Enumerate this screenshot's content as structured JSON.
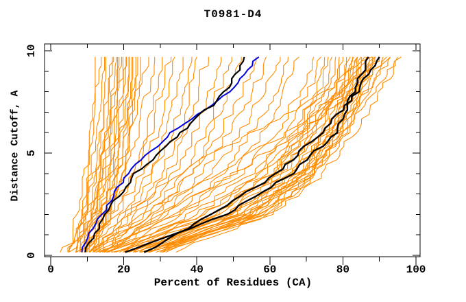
{
  "title": "T0981-D4",
  "axes": {
    "x": {
      "label": "Percent of Residues (CA)",
      "min": 0,
      "max": 100,
      "major_ticks": [
        0,
        20,
        40,
        60,
        80,
        100
      ],
      "minor_step": 10
    },
    "y": {
      "label": "Distance Cutoff, A",
      "min": 0,
      "max": 10,
      "major_ticks": [
        0,
        5,
        10
      ],
      "minor_step": 1
    }
  },
  "colors": {
    "orange": "#ff8c00",
    "blue": "#0000dd",
    "black": "#000000",
    "axis": "#000000",
    "background": "#ffffff"
  },
  "chart_data": {
    "type": "line",
    "title": "T0981-D4",
    "xlabel": "Percent of Residues (CA)",
    "ylabel": "Distance Cutoff, A",
    "xlim": [
      0,
      100
    ],
    "ylim": [
      0,
      10
    ],
    "grid": false,
    "legend": "none",
    "cutoffs": [
      0.15,
      2,
      4,
      6,
      8,
      9.7
    ],
    "orange_models": {
      "color_key": "orange",
      "stroke_width": 1.1,
      "x_at_cutoffs": [
        [
          4,
          7,
          9,
          10,
          11,
          12
        ],
        [
          6,
          8,
          10,
          11,
          12,
          13
        ],
        [
          5,
          8,
          10,
          12,
          13,
          14
        ],
        [
          7,
          9,
          11,
          13,
          14,
          15
        ],
        [
          6,
          9,
          12,
          13,
          15,
          16
        ],
        [
          8,
          10,
          12,
          14,
          15,
          16
        ],
        [
          7,
          10,
          13,
          15,
          16,
          17
        ],
        [
          6,
          10,
          13,
          15,
          17,
          18
        ],
        [
          8,
          11,
          14,
          16,
          17,
          18
        ],
        [
          7,
          11,
          14,
          16,
          18,
          19
        ],
        [
          9,
          12,
          15,
          17,
          18,
          19
        ],
        [
          8,
          12,
          15,
          17,
          19,
          20
        ],
        [
          6,
          11,
          15,
          18,
          19,
          20
        ],
        [
          9,
          13,
          16,
          18,
          20,
          21
        ],
        [
          8,
          13,
          17,
          19,
          20,
          21
        ],
        [
          10,
          14,
          17,
          19,
          21,
          22
        ],
        [
          9,
          14,
          18,
          20,
          21,
          22
        ],
        [
          10,
          15,
          18,
          20,
          22,
          23
        ],
        [
          11,
          15,
          19,
          21,
          22,
          23
        ],
        [
          10,
          16,
          19,
          21,
          23,
          24
        ],
        [
          8,
          13,
          18,
          22,
          24,
          26
        ],
        [
          10,
          15,
          20,
          24,
          26,
          28
        ],
        [
          9,
          16,
          22,
          26,
          28,
          30
        ],
        [
          11,
          17,
          23,
          27,
          30,
          32
        ],
        [
          10,
          18,
          25,
          29,
          32,
          34
        ],
        [
          12,
          20,
          27,
          31,
          34,
          36
        ],
        [
          11,
          21,
          28,
          33,
          36,
          38
        ],
        [
          13,
          22,
          30,
          35,
          38,
          40
        ],
        [
          12,
          24,
          32,
          37,
          40,
          43
        ],
        [
          14,
          26,
          34,
          39,
          43,
          46
        ],
        [
          13,
          27,
          36,
          42,
          46,
          49
        ],
        [
          15,
          29,
          38,
          44,
          48,
          52
        ],
        [
          12,
          28,
          38,
          46,
          52,
          56
        ],
        [
          14,
          30,
          41,
          49,
          55,
          59
        ],
        [
          13,
          32,
          44,
          52,
          58,
          62
        ],
        [
          15,
          34,
          47,
          55,
          61,
          65
        ],
        [
          16,
          36,
          50,
          58,
          64,
          68
        ],
        [
          14,
          35,
          52,
          62,
          68,
          72
        ],
        [
          16,
          38,
          55,
          64,
          70,
          74
        ],
        [
          18,
          40,
          57,
          66,
          72,
          75
        ],
        [
          15,
          42,
          58,
          67,
          73,
          76
        ],
        [
          20,
          44,
          60,
          68,
          74,
          77
        ],
        [
          17,
          45,
          61,
          69,
          75,
          78
        ],
        [
          22,
          46,
          62,
          70,
          76,
          79
        ],
        [
          19,
          48,
          63,
          71,
          77,
          80
        ],
        [
          24,
          50,
          64,
          72,
          78,
          81
        ],
        [
          21,
          50,
          65,
          73,
          79,
          82
        ],
        [
          26,
          52,
          66,
          74,
          80,
          82
        ],
        [
          23,
          52,
          67,
          75,
          80,
          83
        ],
        [
          28,
          54,
          68,
          76,
          81,
          84
        ],
        [
          25,
          54,
          69,
          76,
          82,
          84
        ],
        [
          30,
          56,
          70,
          77,
          82,
          85
        ],
        [
          27,
          56,
          70,
          78,
          83,
          86
        ],
        [
          32,
          58,
          71,
          78,
          84,
          86
        ],
        [
          29,
          58,
          72,
          79,
          84,
          87
        ],
        [
          33,
          60,
          72,
          80,
          85,
          88
        ],
        [
          26,
          55,
          68,
          76,
          83,
          88
        ],
        [
          22,
          48,
          62,
          72,
          80,
          86
        ],
        [
          20,
          45,
          60,
          70,
          79,
          85
        ],
        [
          18,
          42,
          58,
          68,
          78,
          84
        ],
        [
          24,
          50,
          66,
          75,
          82,
          89
        ],
        [
          28,
          55,
          70,
          79,
          86,
          91
        ],
        [
          30,
          58,
          73,
          81,
          87,
          92
        ],
        [
          25,
          52,
          68,
          78,
          86,
          93
        ],
        [
          27,
          54,
          70,
          80,
          88,
          95
        ],
        [
          12,
          25,
          45,
          65,
          80,
          90
        ],
        [
          10,
          20,
          35,
          55,
          75,
          88
        ],
        [
          15,
          30,
          50,
          68,
          82,
          93
        ],
        [
          30,
          60,
          75,
          83,
          90,
          96
        ],
        [
          28,
          58,
          72,
          80,
          85,
          88
        ]
      ]
    },
    "highlight_models": [
      {
        "name": "blue-model",
        "color_key": "blue",
        "stroke_width": 2,
        "x_at_cutoffs": [
          8,
          14,
          21,
          33,
          49,
          57
        ]
      },
      {
        "name": "black-model-1",
        "color_key": "black",
        "stroke_width": 2.2,
        "x_at_cutoffs": [
          9,
          15,
          23,
          36,
          48,
          53
        ]
      },
      {
        "name": "black-model-2",
        "color_key": "black",
        "stroke_width": 2.4,
        "x_at_cutoffs": [
          20,
          48,
          66,
          78,
          83,
          87
        ]
      },
      {
        "name": "black-model-3",
        "color_key": "black",
        "stroke_width": 2.4,
        "x_at_cutoffs": [
          26,
          44,
          62,
          74,
          84,
          90
        ]
      }
    ]
  }
}
